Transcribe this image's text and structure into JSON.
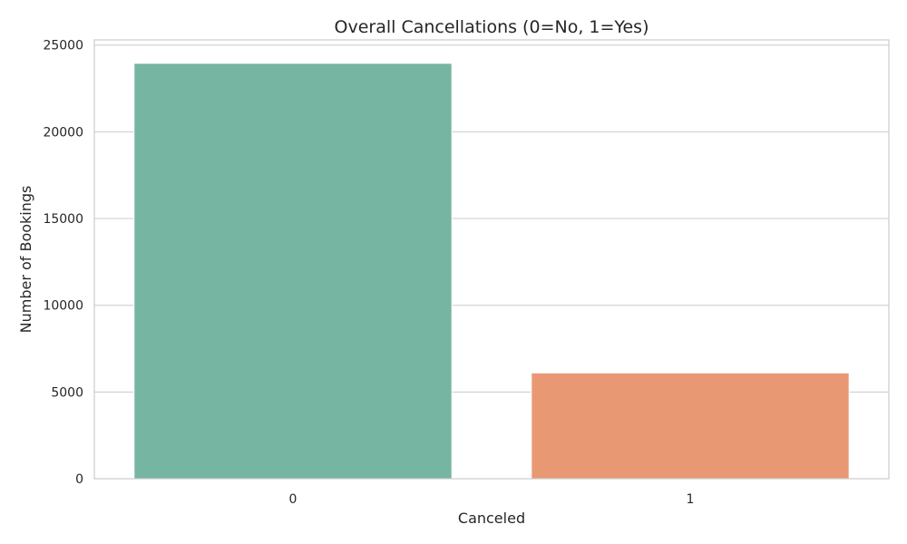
{
  "chart_data": {
    "type": "bar",
    "title": "Overall Cancellations (0=No, 1=Yes)",
    "xlabel": "Canceled",
    "ylabel": "Number of Bookings",
    "categories": [
      "0",
      "1"
    ],
    "values": [
      23950,
      6100
    ],
    "ylim": [
      0,
      25300
    ],
    "yticks": [
      0,
      5000,
      10000,
      15000,
      20000,
      25000
    ],
    "colors": [
      "#76b5a1",
      "#e99874"
    ],
    "grid": true,
    "grid_axis": "y",
    "legend": "none"
  }
}
